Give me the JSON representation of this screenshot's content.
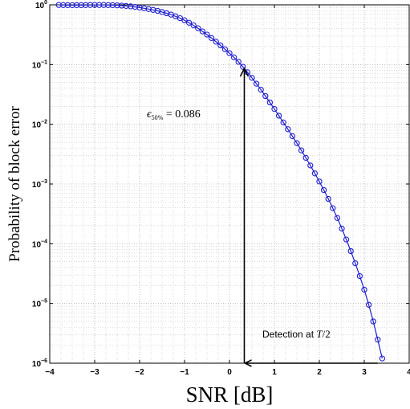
{
  "chart_data": {
    "type": "line",
    "title": "",
    "xlabel": "SNR [dB]",
    "ylabel": "Probability of block error",
    "xlim": [
      -4,
      4
    ],
    "ylim": [
      1e-06,
      1
    ],
    "yscale": "log",
    "grid": true,
    "grid_minor": true,
    "series_color": "#1f1fd0",
    "marker": "circle",
    "x_ticks": [
      "−4",
      "−3",
      "−2",
      "−1",
      "0",
      "1",
      "2",
      "3",
      "4"
    ],
    "y_ticks": [
      {
        "base": "10",
        "exp": "0"
      },
      {
        "base": "10",
        "exp": "−1"
      },
      {
        "base": "10",
        "exp": "−2"
      },
      {
        "base": "10",
        "exp": "−3"
      },
      {
        "base": "10",
        "exp": "−4"
      },
      {
        "base": "10",
        "exp": "−5"
      },
      {
        "base": "10",
        "exp": "−6"
      }
    ],
    "series": [
      {
        "x": [
          -3.8,
          -2.0,
          -1.0,
          0.0,
          0.33,
          1.0,
          2.0,
          2.5,
          3.0,
          3.2,
          3.4
        ],
        "y": [
          0.995,
          0.9,
          0.55,
          0.155,
          0.086,
          0.018,
          0.0011,
          0.00018,
          1.7e-05,
          5e-06,
          1.2e-06
        ]
      }
    ],
    "annotations": {
      "epsilon": {
        "symbol": "ϵ",
        "subscript": "50%",
        "text": " = 0.086",
        "value": 0.086,
        "x": 0.33
      },
      "detection": {
        "text": "Detection at ",
        "var": "T",
        "suffix": "/2",
        "x_start": 3.3,
        "x_end": 0.33,
        "y": 1e-06
      }
    }
  }
}
